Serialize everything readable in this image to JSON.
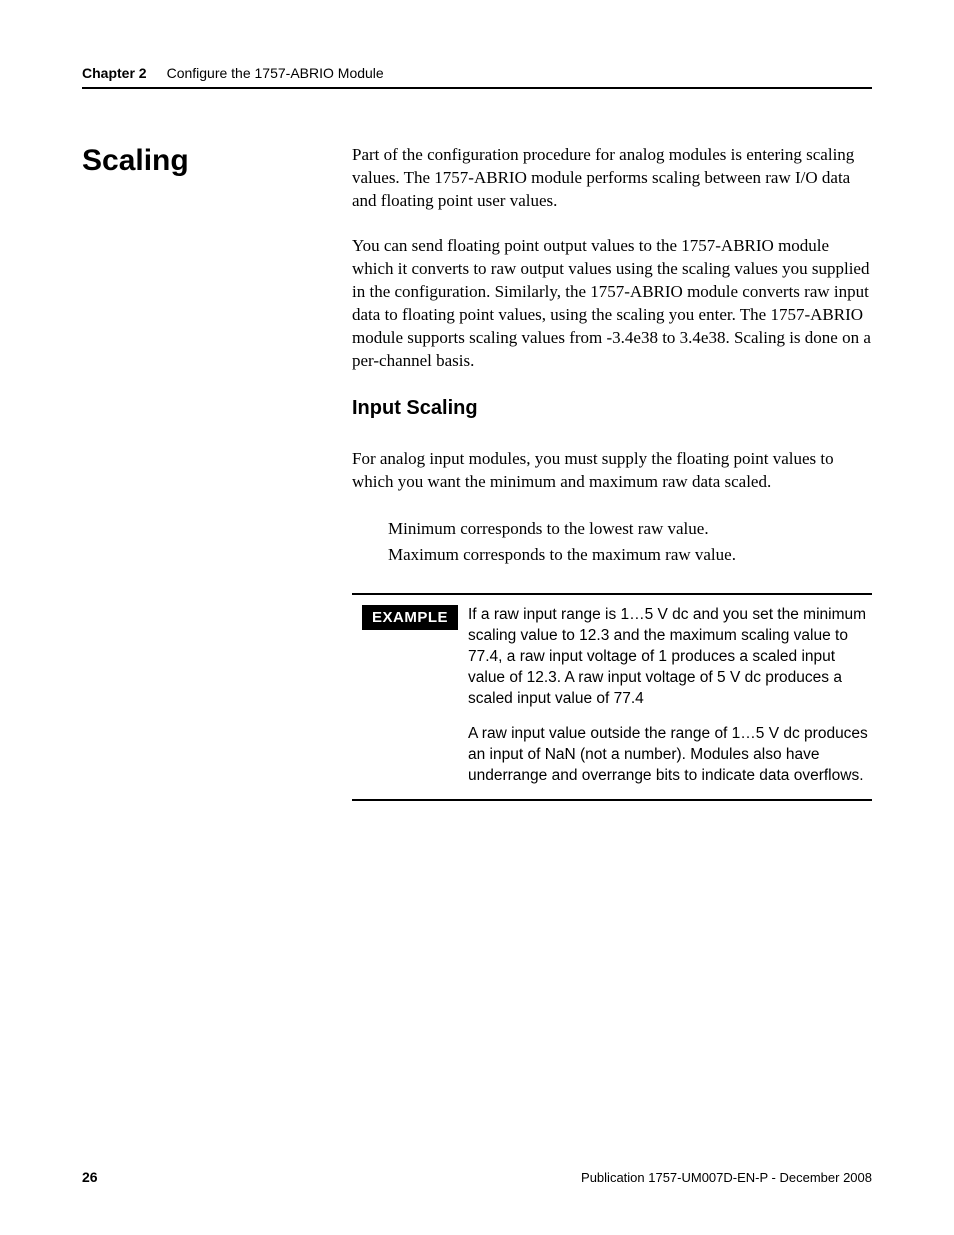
{
  "header": {
    "chapter_label": "Chapter 2",
    "chapter_title": "Configure the 1757-ABRIO Module"
  },
  "main": {
    "section_heading": "Scaling",
    "para1": "Part of the configuration procedure for analog modules is entering scaling values. The 1757-ABRIO module performs scaling between raw I/O data and floating point user values.",
    "para2": "You can send floating point output values to the 1757-ABRIO module which it converts to raw output values using the scaling values you supplied in the configuration. Similarly, the 1757-ABRIO module converts raw input data to floating point values, using the scaling you enter. The 1757-ABRIO module supports scaling values from -3.4e38 to 3.4e38. Scaling is done on a per-channel basis.",
    "subheading": "Input Scaling",
    "para3": "For analog input modules, you must supply the floating point values to which you want the minimum and maximum raw data scaled.",
    "list": {
      "item1": "Minimum corresponds to the lowest raw value.",
      "item2": "Maximum corresponds to the maximum raw value."
    },
    "example": {
      "label": "EXAMPLE",
      "p1": "If a raw input range is 1…5 V dc and you set the minimum scaling value to 12.3 and the maximum scaling value to 77.4, a raw input voltage of 1 produces a scaled input value of 12.3. A raw input voltage of 5 V dc produces a scaled input value of 77.4",
      "p2": "A raw input value outside the range of 1…5 V dc produces an input of NaN (not a number). Modules also have underrange and overrange bits to indicate data overflows."
    }
  },
  "footer": {
    "page_number": "26",
    "publication": "Publication 1757-UM007D-EN-P - December 2008"
  }
}
